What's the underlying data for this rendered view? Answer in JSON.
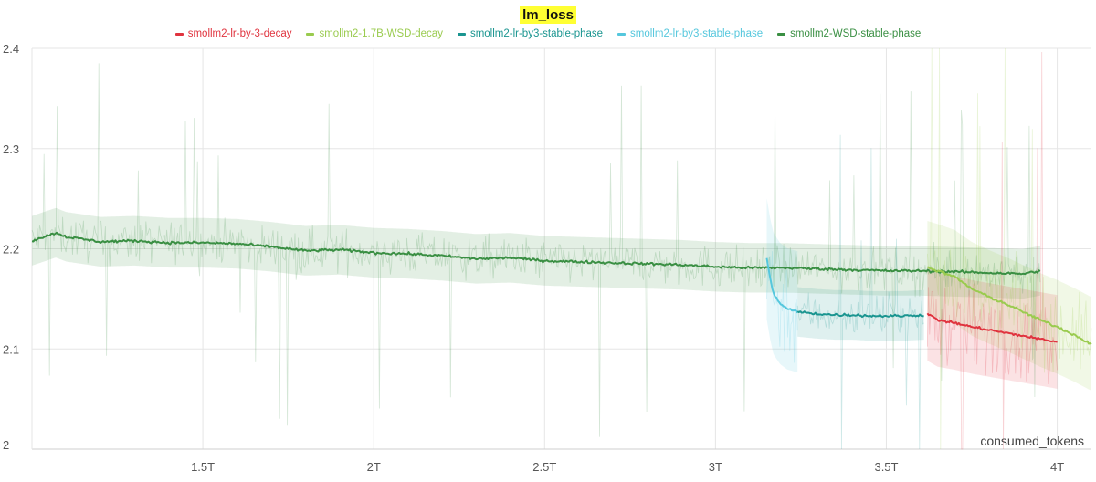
{
  "chart_data": {
    "type": "line",
    "title": "lm_loss",
    "xlabel": "consumed_tokens",
    "ylabel": "",
    "xlim": [
      1.0,
      4.1
    ],
    "ylim": [
      2.0,
      2.4
    ],
    "x_ticks": [
      {
        "value": 1.5,
        "label": "1.5T"
      },
      {
        "value": 2.0,
        "label": "2T"
      },
      {
        "value": 2.5,
        "label": "2.5T"
      },
      {
        "value": 3.0,
        "label": "3T"
      },
      {
        "value": 3.5,
        "label": "3.5T"
      },
      {
        "value": 4.0,
        "label": "4T"
      }
    ],
    "y_ticks": [
      {
        "value": 2.0,
        "label": "2"
      },
      {
        "value": 2.1,
        "label": "2.1"
      },
      {
        "value": 2.2,
        "label": "2.2"
      },
      {
        "value": 2.3,
        "label": "2.3"
      },
      {
        "value": 2.4,
        "label": "2.4"
      }
    ],
    "grid": true,
    "legend_position": "top",
    "series": [
      {
        "name": "smollm2-lr-by-3-decay",
        "color": "#e0333e",
        "x": [
          3.62,
          3.65,
          3.7,
          3.75,
          3.8,
          3.85,
          3.9,
          3.95,
          4.0
        ],
        "y": [
          2.135,
          2.129,
          2.126,
          2.122,
          2.119,
          2.116,
          2.113,
          2.11,
          2.107
        ]
      },
      {
        "name": "smollm2-1.7B-WSD-decay",
        "color": "#9acb4f",
        "x": [
          3.62,
          3.65,
          3.7,
          3.75,
          3.8,
          3.85,
          3.9,
          3.95,
          4.0,
          4.05,
          4.1
        ],
        "y": [
          2.181,
          2.178,
          2.172,
          2.16,
          2.152,
          2.145,
          2.137,
          2.129,
          2.122,
          2.114,
          2.105
        ]
      },
      {
        "name": "smollm2-lr-by3-stable-phase",
        "color": "#1a9590",
        "x": [
          3.24,
          3.3,
          3.35,
          3.4,
          3.45,
          3.5,
          3.55,
          3.61
        ],
        "y": [
          2.137,
          2.135,
          2.134,
          2.134,
          2.133,
          2.133,
          2.133,
          2.134
        ]
      },
      {
        "name": "smollm2-lr-by3-stable-phase",
        "color": "#55c7dd",
        "x": [
          3.15,
          3.16,
          3.17,
          3.19,
          3.21,
          3.24
        ],
        "y": [
          2.19,
          2.17,
          2.155,
          2.145,
          2.14,
          2.137
        ]
      },
      {
        "name": "smollm2-WSD-stable-phase",
        "color": "#3a8f43",
        "x": [
          1.0,
          1.07,
          1.1,
          1.2,
          1.3,
          1.4,
          1.5,
          1.6,
          1.7,
          1.8,
          1.9,
          2.0,
          2.1,
          2.2,
          2.3,
          2.4,
          2.5,
          2.6,
          2.7,
          2.8,
          2.9,
          3.0,
          3.1,
          3.2,
          3.3,
          3.4,
          3.5,
          3.6,
          3.7,
          3.8,
          3.9,
          3.95
        ],
        "y": [
          2.208,
          2.216,
          2.212,
          2.207,
          2.208,
          2.206,
          2.206,
          2.205,
          2.202,
          2.198,
          2.199,
          2.196,
          2.195,
          2.193,
          2.19,
          2.191,
          2.188,
          2.187,
          2.186,
          2.185,
          2.184,
          2.182,
          2.181,
          2.181,
          2.18,
          2.179,
          2.178,
          2.178,
          2.177,
          2.176,
          2.175,
          2.178
        ]
      }
    ]
  }
}
